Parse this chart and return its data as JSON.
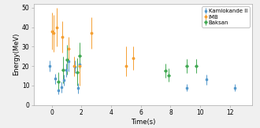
{
  "title": "",
  "xlabel": "Time(s)",
  "ylabel": "Energy(MeV)",
  "xlim": [
    -1.2,
    13.5
  ],
  "ylim": [
    0,
    52
  ],
  "background_color": "#f0f0f0",
  "axes_facecolor": "#ffffff",
  "legend_labels": [
    "Kamiokande II",
    "IMB",
    "Baksan"
  ],
  "legend_colors": [
    "#5599cc",
    "#f5a033",
    "#44aa55"
  ],
  "kamiokande": {
    "color": "#5599cc",
    "marker": "s",
    "markersize": 1.8,
    "t": [
      -0.15,
      0.25,
      0.45,
      0.65,
      0.8,
      1.0,
      1.15,
      1.55,
      1.75,
      1.9,
      9.1,
      10.4,
      12.35
    ],
    "E": [
      20.0,
      13.5,
      7.5,
      9.2,
      12.8,
      17.9,
      22.4,
      19.8,
      8.6,
      21.0,
      8.9,
      13.0,
      8.9
    ],
    "Eu": [
      2.9,
      2.6,
      2.0,
      2.7,
      2.9,
      3.5,
      5.0,
      3.2,
      2.7,
      4.0,
      1.9,
      2.6,
      1.9
    ],
    "Ed": [
      2.9,
      2.6,
      2.0,
      2.7,
      2.9,
      3.5,
      5.0,
      3.2,
      2.7,
      4.0,
      1.9,
      2.6,
      1.9
    ]
  },
  "imb": {
    "color": "#f5a033",
    "marker": "o",
    "markersize": 1.8,
    "t": [
      0.0,
      0.12,
      0.33,
      0.72,
      1.12,
      1.52,
      1.88,
      2.7,
      5.0,
      5.5
    ],
    "E": [
      38.0,
      37.0,
      40.0,
      35.0,
      29.0,
      20.0,
      20.0,
      37.0,
      20.0,
      24.0
    ],
    "Eu": [
      9.5,
      9.5,
      10.0,
      8.0,
      6.0,
      5.0,
      10.0,
      8.0,
      10.0,
      6.0
    ],
    "Ed": [
      9.5,
      9.5,
      10.0,
      8.0,
      6.0,
      5.0,
      10.0,
      8.0,
      5.0,
      6.0
    ]
  },
  "baksan": {
    "color": "#44aa55",
    "marker": "D",
    "markersize": 1.8,
    "t": [
      0.45,
      0.78,
      1.05,
      1.72,
      1.88,
      7.65,
      7.85,
      9.1,
      9.75
    ],
    "E": [
      12.0,
      18.0,
      23.3,
      17.0,
      25.5,
      17.6,
      15.3,
      20.1,
      20.1
    ],
    "Eu": [
      5.0,
      7.0,
      7.5,
      7.0,
      6.5,
      3.5,
      3.5,
      3.5,
      3.5
    ],
    "Ed": [
      5.0,
      7.0,
      7.5,
      7.0,
      6.5,
      3.5,
      3.5,
      3.5,
      3.5
    ]
  }
}
